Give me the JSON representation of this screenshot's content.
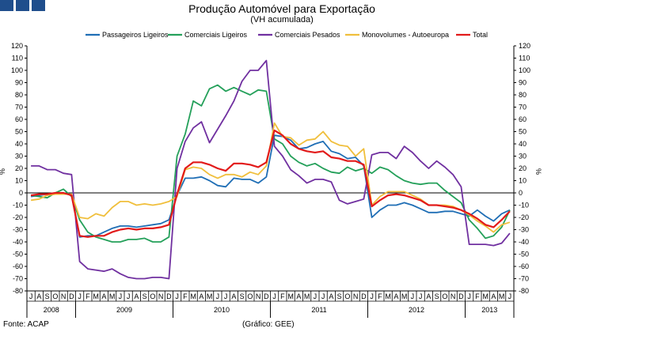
{
  "brand": {
    "colors": [
      "#1f4e8c",
      "#1f4e8c",
      "#1f4e8c"
    ]
  },
  "chart_data": {
    "type": "line",
    "title": "Produção Automóvel para Exportação",
    "subtitle": "(VH acumulada)",
    "ylabel_left": "%",
    "ylabel_right": "%",
    "ylim": [
      -80,
      120
    ],
    "yticks": [
      -80,
      -70,
      -60,
      -50,
      -40,
      -30,
      -20,
      -10,
      0,
      10,
      20,
      30,
      40,
      50,
      60,
      70,
      80,
      90,
      100,
      110,
      120
    ],
    "legend_position": "top",
    "x": [
      "J",
      "A",
      "S",
      "O",
      "N",
      "D",
      "J",
      "F",
      "M",
      "A",
      "M",
      "J",
      "J",
      "A",
      "S",
      "O",
      "N",
      "D",
      "J",
      "F",
      "M",
      "A",
      "M",
      "J",
      "J",
      "A",
      "S",
      "O",
      "N",
      "D",
      "J",
      "F",
      "M",
      "A",
      "M",
      "J",
      "J",
      "A",
      "S",
      "O",
      "N",
      "D",
      "J",
      "F",
      "M",
      "A",
      "M",
      "J",
      "J",
      "A",
      "S",
      "O",
      "N",
      "D",
      "J",
      "F",
      "M",
      "A",
      "M",
      "J"
    ],
    "years": [
      {
        "label": "2008",
        "start": 0,
        "count": 6
      },
      {
        "label": "2009",
        "start": 6,
        "count": 12
      },
      {
        "label": "2010",
        "start": 18,
        "count": 12
      },
      {
        "label": "2011",
        "start": 30,
        "count": 12
      },
      {
        "label": "2012",
        "start": 42,
        "count": 12
      },
      {
        "label": "2013",
        "start": 54,
        "count": 6
      }
    ],
    "series": [
      {
        "name": "Passageiros Ligeiros",
        "color": "#1f6eb5",
        "values": [
          -3,
          -2,
          -1,
          -1,
          0,
          -2,
          -36,
          -35,
          -35,
          -32,
          -29,
          -27,
          -27,
          -28,
          -27,
          -26,
          -25,
          -22,
          -2,
          12,
          12,
          13,
          10,
          6,
          5,
          12,
          11,
          11,
          8,
          13,
          47,
          46,
          43,
          36,
          37,
          40,
          42,
          34,
          32,
          28,
          29,
          22,
          -20,
          -14,
          -10,
          -10,
          -8,
          -10,
          -13,
          -16,
          -16,
          -15,
          -15,
          -17,
          -19,
          -14,
          -19,
          -23,
          -17,
          -14
        ]
      },
      {
        "name": "Comerciais Ligeiros",
        "color": "#24a05a",
        "values": [
          -2,
          -3,
          -4,
          0,
          3,
          -3,
          -22,
          -32,
          -36,
          -38,
          -40,
          -40,
          -38,
          -38,
          -37,
          -40,
          -40,
          -36,
          30,
          48,
          75,
          71,
          85,
          88,
          83,
          86,
          83,
          80,
          84,
          83,
          44,
          40,
          30,
          25,
          22,
          24,
          20,
          17,
          16,
          21,
          18,
          20,
          16,
          21,
          19,
          14,
          10,
          8,
          7,
          8,
          8,
          2,
          -3,
          -8,
          -22,
          -29,
          -37,
          -35,
          -28,
          -14
        ]
      },
      {
        "name": "Comerciais Pesados",
        "color": "#7030a0",
        "values": [
          22,
          22,
          19,
          19,
          16,
          15,
          -56,
          -62,
          -63,
          -64,
          -62,
          -66,
          -69,
          -70,
          -70,
          -69,
          -69,
          -70,
          20,
          42,
          53,
          58,
          41,
          52,
          63,
          75,
          91,
          100,
          100,
          108,
          38,
          30,
          19,
          14,
          8,
          11,
          11,
          9,
          -6,
          -9,
          -7,
          -5,
          31,
          33,
          33,
          28,
          38,
          33,
          26,
          20,
          26,
          21,
          15,
          5,
          -42,
          -42,
          -42,
          -43,
          -41,
          -33
        ]
      },
      {
        "name": "Monovolumes - Autoeuropa",
        "color": "#f0bf3c",
        "values": [
          -6,
          -5,
          -2,
          -1,
          -1,
          -1,
          -20,
          -21,
          -17,
          -19,
          -12,
          -7,
          -7,
          -10,
          -9,
          -10,
          -9,
          -7,
          -3,
          19,
          21,
          20,
          15,
          12,
          15,
          15,
          13,
          17,
          15,
          22,
          57,
          46,
          45,
          39,
          43,
          44,
          50,
          42,
          39,
          38,
          30,
          36,
          -10,
          -3,
          1,
          1,
          1,
          -2,
          -5,
          -10,
          -10,
          -10,
          -11,
          -14,
          -18,
          -23,
          -27,
          -32,
          -26,
          -24
        ]
      },
      {
        "name": "Total",
        "color": "#e21a1a",
        "values": [
          -2,
          -1,
          -1,
          0,
          0,
          -2,
          -35,
          -36,
          -35,
          -35,
          -32,
          -30,
          -29,
          -30,
          -29,
          -29,
          -28,
          -26,
          -1,
          20,
          25,
          25,
          23,
          20,
          18,
          24,
          24,
          23,
          21,
          25,
          51,
          47,
          40,
          36,
          34,
          33,
          34,
          29,
          28,
          26,
          26,
          23,
          -11,
          -6,
          -2,
          -1,
          -2,
          -4,
          -6,
          -10,
          -10,
          -11,
          -12,
          -14,
          -17,
          -21,
          -26,
          -28,
          -22,
          -15
        ]
      }
    ]
  },
  "footer": {
    "source": "Fonte: ACAP",
    "credit": "(Gráfico: GEE)"
  }
}
